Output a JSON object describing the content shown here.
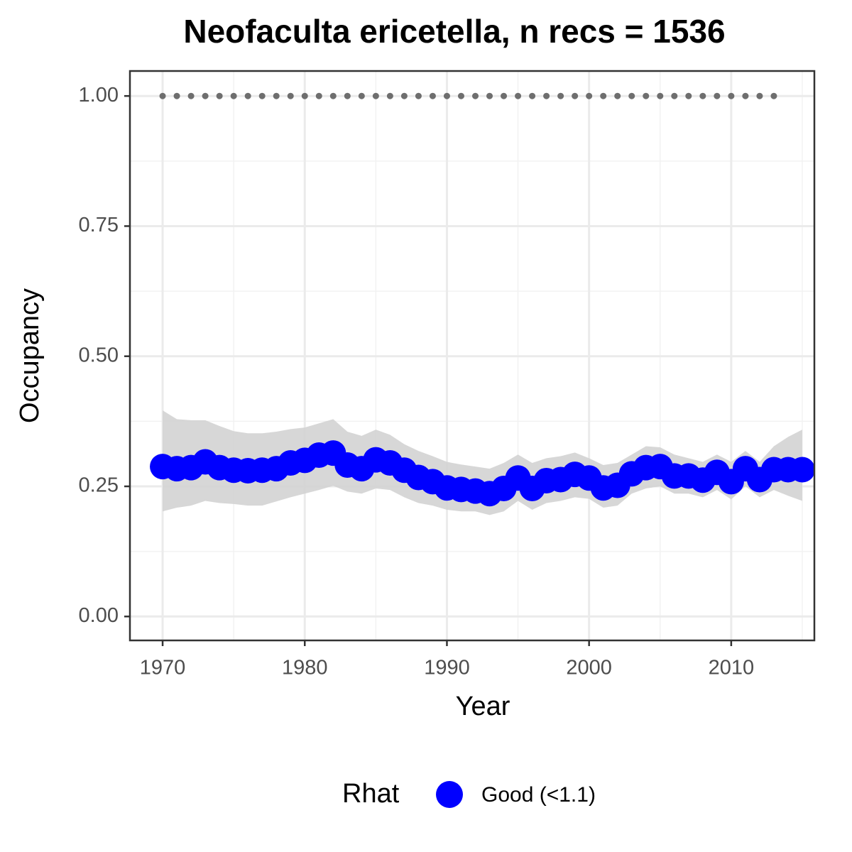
{
  "chart_data": {
    "type": "line",
    "title": "Neofaculta ericetella, n recs = 1536",
    "x_label": "Year",
    "y_label": "Occupancy",
    "x": [
      1970,
      1971,
      1972,
      1973,
      1974,
      1975,
      1976,
      1977,
      1978,
      1979,
      1980,
      1981,
      1982,
      1983,
      1984,
      1985,
      1986,
      1987,
      1988,
      1989,
      1990,
      1991,
      1992,
      1993,
      1994,
      1995,
      1996,
      1997,
      1998,
      1999,
      2000,
      2001,
      2002,
      2003,
      2004,
      2005,
      2006,
      2007,
      2008,
      2009,
      2010,
      2011,
      2012,
      2013,
      2014,
      2015
    ],
    "series": [
      {
        "name": "Good (<1.1)",
        "color": "#0000ff",
        "values": [
          0.288,
          0.284,
          0.286,
          0.297,
          0.286,
          0.281,
          0.28,
          0.281,
          0.284,
          0.295,
          0.3,
          0.31,
          0.314,
          0.291,
          0.284,
          0.301,
          0.295,
          0.281,
          0.267,
          0.259,
          0.247,
          0.244,
          0.241,
          0.236,
          0.246,
          0.266,
          0.246,
          0.261,
          0.263,
          0.273,
          0.266,
          0.247,
          0.252,
          0.274,
          0.286,
          0.288,
          0.27,
          0.27,
          0.262,
          0.277,
          0.259,
          0.284,
          0.263,
          0.282,
          0.282,
          0.282
        ],
        "upper": [
          0.396,
          0.379,
          0.377,
          0.377,
          0.366,
          0.356,
          0.352,
          0.352,
          0.355,
          0.36,
          0.363,
          0.371,
          0.379,
          0.355,
          0.347,
          0.359,
          0.349,
          0.331,
          0.318,
          0.308,
          0.297,
          0.292,
          0.288,
          0.284,
          0.295,
          0.311,
          0.295,
          0.304,
          0.308,
          0.315,
          0.304,
          0.291,
          0.295,
          0.311,
          0.327,
          0.325,
          0.311,
          0.304,
          0.297,
          0.311,
          0.297,
          0.318,
          0.297,
          0.327,
          0.345,
          0.359
        ],
        "lower": [
          0.202,
          0.209,
          0.213,
          0.222,
          0.218,
          0.216,
          0.213,
          0.213,
          0.221,
          0.229,
          0.236,
          0.243,
          0.251,
          0.24,
          0.236,
          0.246,
          0.243,
          0.229,
          0.218,
          0.213,
          0.205,
          0.202,
          0.202,
          0.195,
          0.202,
          0.222,
          0.205,
          0.218,
          0.222,
          0.229,
          0.226,
          0.209,
          0.213,
          0.236,
          0.246,
          0.25,
          0.236,
          0.236,
          0.229,
          0.243,
          0.225,
          0.25,
          0.229,
          0.243,
          0.232,
          0.222
        ]
      }
    ],
    "band_color": "#d3d3d3",
    "points": {
      "color": "#6e6e6e",
      "x": [
        1970,
        1971,
        1972,
        1973,
        1974,
        1975,
        1976,
        1977,
        1978,
        1979,
        1980,
        1981,
        1982,
        1983,
        1984,
        1985,
        1986,
        1987,
        1988,
        1989,
        1990,
        1991,
        1992,
        1993,
        1994,
        1995,
        1996,
        1997,
        1998,
        1999,
        2000,
        2001,
        2002,
        2003,
        2004,
        2005,
        2006,
        2007,
        2008,
        2009,
        2010,
        2011,
        2012,
        2013
      ],
      "values": [
        1,
        1,
        1,
        1,
        1,
        1,
        1,
        1,
        1,
        1,
        1,
        1,
        1,
        1,
        1,
        1,
        1,
        1,
        1,
        1,
        1,
        1,
        1,
        1,
        1,
        1,
        1,
        1,
        1,
        1,
        1,
        1,
        1,
        1,
        1,
        1,
        1,
        1,
        1,
        1,
        1,
        1,
        1,
        1
      ]
    },
    "xlim": [
      1967.7,
      2015.85
    ],
    "xticks": [
      1970,
      1980,
      1990,
      2000,
      2010
    ],
    "ylim": [
      -0.046,
      1.048
    ],
    "yticks": [
      {
        "value": 0,
        "label": "0.00"
      },
      {
        "value": 0.25,
        "label": "0.25"
      },
      {
        "value": 0.5,
        "label": "0.50"
      },
      {
        "value": 0.75,
        "label": "0.75"
      },
      {
        "value": 1,
        "label": "1.00"
      }
    ],
    "grid": true,
    "legend_title": "Rhat",
    "legend_position": "bottom"
  }
}
